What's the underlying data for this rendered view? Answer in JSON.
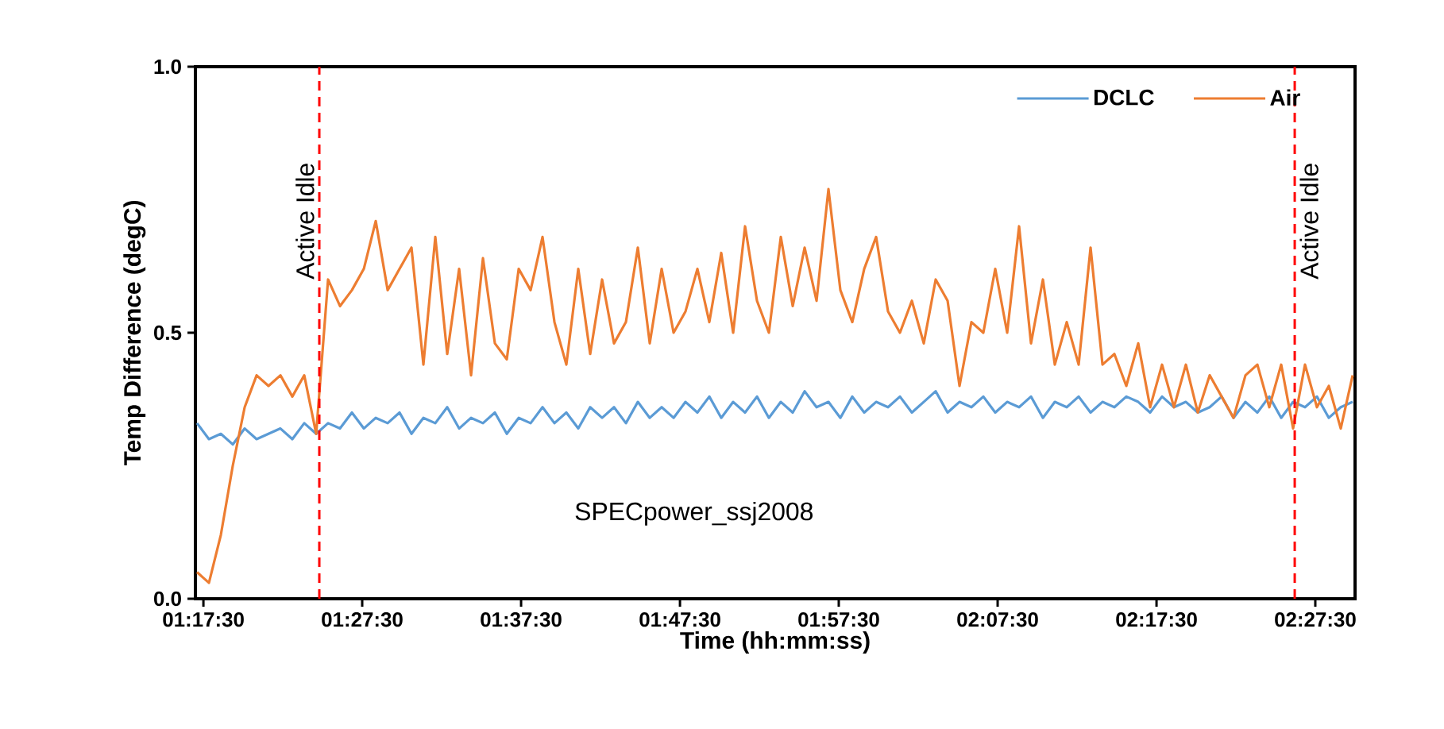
{
  "chart_data": {
    "type": "line",
    "xlabel": "Time (hh:mm:ss)",
    "ylabel": "Temp Difference (degC)",
    "x": [
      1.285,
      1.2975,
      1.31,
      1.3225,
      1.335,
      1.3475,
      1.36,
      1.3725,
      1.385,
      1.3975,
      1.41,
      1.4225,
      1.435,
      1.4475,
      1.46,
      1.4725,
      1.485,
      1.4975,
      1.51,
      1.5225,
      1.535,
      1.5475,
      1.56,
      1.5725,
      1.585,
      1.5975,
      1.61,
      1.6225,
      1.635,
      1.6475,
      1.66,
      1.6725,
      1.685,
      1.6975,
      1.71,
      1.7225,
      1.735,
      1.7475,
      1.76,
      1.7725,
      1.785,
      1.7975,
      1.81,
      1.8225,
      1.835,
      1.8475,
      1.86,
      1.8725,
      1.885,
      1.8975,
      1.91,
      1.9225,
      1.935,
      1.9475,
      1.96,
      1.9725,
      1.985,
      1.9975,
      2.01,
      2.0225,
      2.035,
      2.0475,
      2.06,
      2.0725,
      2.085,
      2.0975,
      2.11,
      2.1225,
      2.135,
      2.1475,
      2.16,
      2.1725,
      2.185,
      2.1975,
      2.21,
      2.2225,
      2.235,
      2.2475,
      2.26,
      2.2725,
      2.285,
      2.2975,
      2.31,
      2.3225,
      2.335,
      2.3475,
      2.36,
      2.3725,
      2.385,
      2.3975,
      2.41,
      2.4225,
      2.435,
      2.4475,
      2.46,
      2.4725,
      2.485,
      2.4975
    ],
    "series": [
      {
        "name": "DCLC",
        "color": "#5b9bd5",
        "values": [
          0.33,
          0.3,
          0.31,
          0.29,
          0.32,
          0.3,
          0.31,
          0.32,
          0.3,
          0.33,
          0.31,
          0.33,
          0.32,
          0.35,
          0.32,
          0.34,
          0.33,
          0.35,
          0.31,
          0.34,
          0.33,
          0.36,
          0.32,
          0.34,
          0.33,
          0.35,
          0.31,
          0.34,
          0.33,
          0.36,
          0.33,
          0.35,
          0.32,
          0.36,
          0.34,
          0.36,
          0.33,
          0.37,
          0.34,
          0.36,
          0.34,
          0.37,
          0.35,
          0.38,
          0.34,
          0.37,
          0.35,
          0.38,
          0.34,
          0.37,
          0.35,
          0.39,
          0.36,
          0.37,
          0.34,
          0.38,
          0.35,
          0.37,
          0.36,
          0.38,
          0.35,
          0.37,
          0.39,
          0.35,
          0.37,
          0.36,
          0.38,
          0.35,
          0.37,
          0.36,
          0.38,
          0.34,
          0.37,
          0.36,
          0.38,
          0.35,
          0.37,
          0.36,
          0.38,
          0.37,
          0.35,
          0.38,
          0.36,
          0.37,
          0.35,
          0.36,
          0.38,
          0.34,
          0.37,
          0.35,
          0.38,
          0.34,
          0.37,
          0.36,
          0.38,
          0.34,
          0.36,
          0.37
        ]
      },
      {
        "name": "Air",
        "color": "#ed7d31",
        "values": [
          0.05,
          0.03,
          0.12,
          0.25,
          0.36,
          0.42,
          0.4,
          0.42,
          0.38,
          0.42,
          0.31,
          0.6,
          0.55,
          0.58,
          0.62,
          0.71,
          0.58,
          0.62,
          0.66,
          0.44,
          0.68,
          0.46,
          0.62,
          0.42,
          0.64,
          0.48,
          0.45,
          0.62,
          0.58,
          0.68,
          0.52,
          0.44,
          0.62,
          0.46,
          0.6,
          0.48,
          0.52,
          0.66,
          0.48,
          0.62,
          0.5,
          0.54,
          0.62,
          0.52,
          0.65,
          0.5,
          0.7,
          0.56,
          0.5,
          0.68,
          0.55,
          0.66,
          0.56,
          0.77,
          0.58,
          0.52,
          0.62,
          0.68,
          0.54,
          0.5,
          0.56,
          0.48,
          0.6,
          0.56,
          0.4,
          0.52,
          0.5,
          0.62,
          0.5,
          0.7,
          0.48,
          0.6,
          0.44,
          0.52,
          0.44,
          0.66,
          0.44,
          0.46,
          0.4,
          0.48,
          0.36,
          0.44,
          0.36,
          0.44,
          0.35,
          0.42,
          0.38,
          0.34,
          0.42,
          0.44,
          0.36,
          0.44,
          0.32,
          0.44,
          0.36,
          0.4,
          0.32,
          0.42
        ]
      }
    ],
    "xlim": [
      1.2833,
      2.5
    ],
    "xticks": [
      {
        "value": 1.2917,
        "label": "01:17:30"
      },
      {
        "value": 1.4583,
        "label": "01:27:30"
      },
      {
        "value": 1.625,
        "label": "01:37:30"
      },
      {
        "value": 1.7917,
        "label": "01:47:30"
      },
      {
        "value": 1.9583,
        "label": "01:57:30"
      },
      {
        "value": 2.125,
        "label": "02:07:30"
      },
      {
        "value": 2.2917,
        "label": "02:17:30"
      },
      {
        "value": 2.4583,
        "label": "02:27:30"
      }
    ],
    "ylim": [
      0,
      1
    ],
    "yticks": [
      {
        "value": 0,
        "label": "0.0"
      },
      {
        "value": 0.5,
        "label": "0.5"
      },
      {
        "value": 1,
        "label": "1.0"
      }
    ],
    "ref_lines": [
      {
        "axis": "x",
        "value": 1.4133,
        "label": "Active Idle",
        "color": "#ff0000",
        "line_style": "dashed"
      },
      {
        "axis": "x",
        "value": 2.4367,
        "label": "Active Idle",
        "color": "#ff0000",
        "line_style": "dashed"
      }
    ],
    "annotations": [
      "SPECpower_ssj2008"
    ],
    "grid": false,
    "legend": "top right",
    "marker": "none",
    "line_style": "solid"
  }
}
